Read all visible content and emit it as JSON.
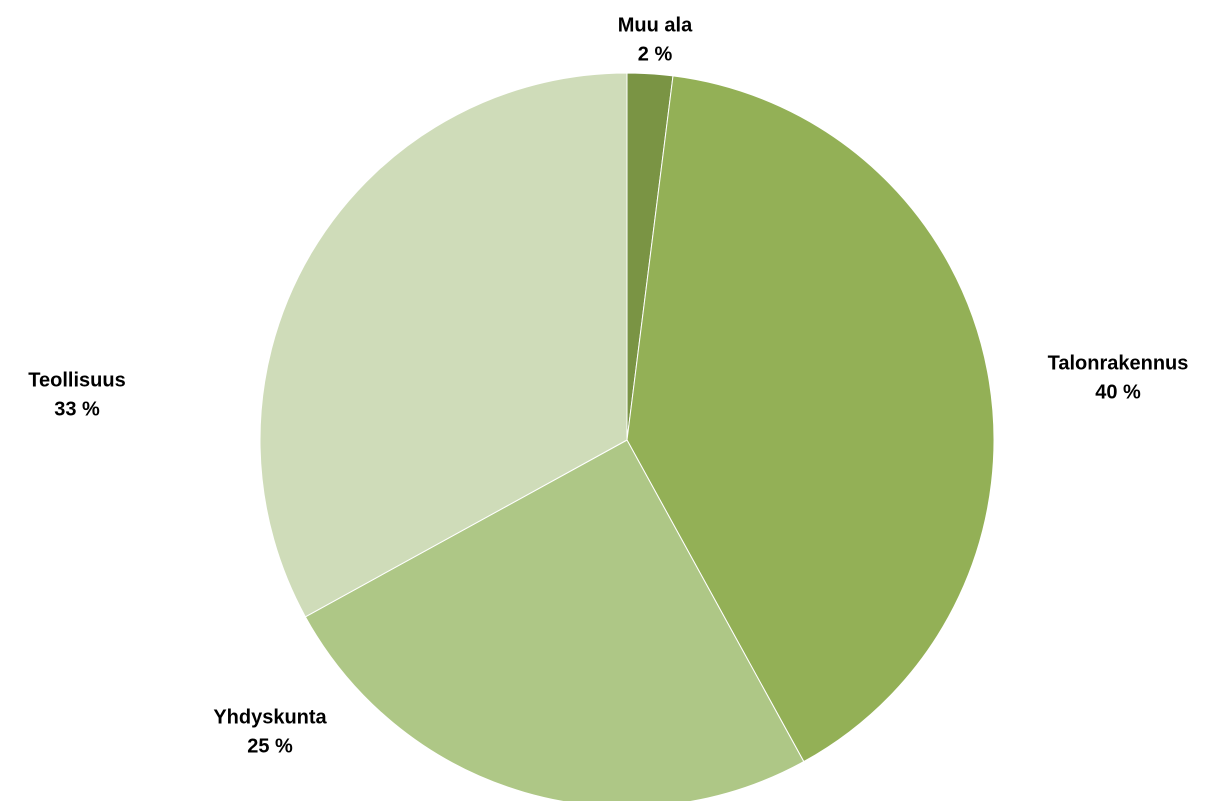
{
  "chart_data": {
    "type": "pie",
    "categories": [
      "Muu ala",
      "Talonrakennus",
      "Yhdyskunta",
      "Teollisuus"
    ],
    "values": [
      2,
      40,
      25,
      33
    ],
    "value_labels": [
      "2 %",
      "40 %",
      "25 %",
      "33 %"
    ],
    "colors": [
      "#7a9444",
      "#93b056",
      "#aec786",
      "#cfdcb9"
    ]
  }
}
